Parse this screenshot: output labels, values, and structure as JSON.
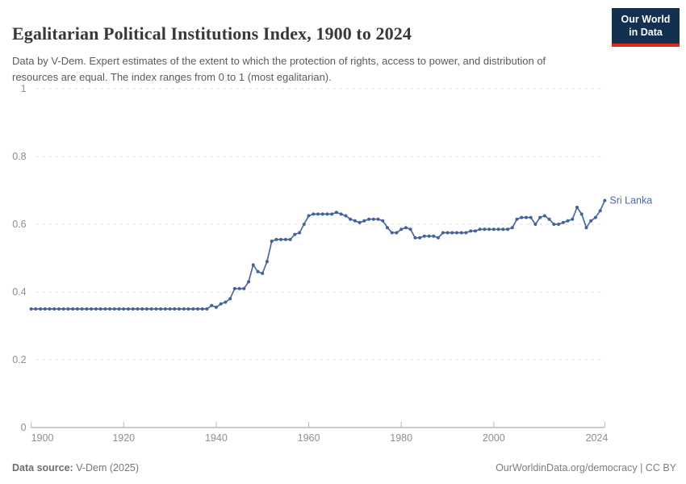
{
  "header": {
    "title": "Egalitarian Political Institutions Index, 1900 to 2024",
    "subtitle": "Data by V-Dem. Expert estimates of the extent to which the protection of rights, access to power, and distribution of resources are equal. The index ranges from 0 to 1 (most egalitarian)."
  },
  "logo": {
    "line1": "Our World",
    "line2": "in Data",
    "bg_color": "#12304f",
    "accent_color": "#dc2a16"
  },
  "chart_data": {
    "type": "line",
    "title": "Egalitarian Political Institutions Index, 1900 to 2024",
    "xlabel": "",
    "ylabel": "",
    "xlim": [
      1900,
      2024
    ],
    "ylim": [
      0,
      1
    ],
    "x_ticks": [
      1900,
      1920,
      1940,
      1960,
      1980,
      2000,
      2024
    ],
    "y_ticks": [
      0,
      0.2,
      0.4,
      0.6,
      0.8,
      1
    ],
    "grid": "horizontal-dashed",
    "legend_position": "end-of-line-label",
    "colors": {
      "line": "#4c6a9c",
      "marker": "#44619b",
      "gridline": "#d9d9d9",
      "axis": "#9a9a9a",
      "tick_label": "#8f8f8f",
      "entity_label": "#4c6a9c"
    },
    "series": [
      {
        "name": "Sri Lanka",
        "x": [
          1900,
          1901,
          1902,
          1903,
          1904,
          1905,
          1906,
          1907,
          1908,
          1909,
          1910,
          1911,
          1912,
          1913,
          1914,
          1915,
          1916,
          1917,
          1918,
          1919,
          1920,
          1921,
          1922,
          1923,
          1924,
          1925,
          1926,
          1927,
          1928,
          1929,
          1930,
          1931,
          1932,
          1933,
          1934,
          1935,
          1936,
          1937,
          1938,
          1939,
          1940,
          1941,
          1942,
          1943,
          1944,
          1945,
          1946,
          1947,
          1948,
          1949,
          1950,
          1951,
          1952,
          1953,
          1954,
          1955,
          1956,
          1957,
          1958,
          1959,
          1960,
          1961,
          1962,
          1963,
          1964,
          1965,
          1966,
          1967,
          1968,
          1969,
          1970,
          1971,
          1972,
          1973,
          1974,
          1975,
          1976,
          1977,
          1978,
          1979,
          1980,
          1981,
          1982,
          1983,
          1984,
          1985,
          1986,
          1987,
          1988,
          1989,
          1990,
          1991,
          1992,
          1993,
          1994,
          1995,
          1996,
          1997,
          1998,
          1999,
          2000,
          2001,
          2002,
          2003,
          2004,
          2005,
          2006,
          2007,
          2008,
          2009,
          2010,
          2011,
          2012,
          2013,
          2014,
          2015,
          2016,
          2017,
          2018,
          2019,
          2020,
          2021,
          2022,
          2023,
          2024
        ],
        "values": [
          0.35,
          0.35,
          0.35,
          0.35,
          0.35,
          0.35,
          0.35,
          0.35,
          0.35,
          0.35,
          0.35,
          0.35,
          0.35,
          0.35,
          0.35,
          0.35,
          0.35,
          0.35,
          0.35,
          0.35,
          0.35,
          0.35,
          0.35,
          0.35,
          0.35,
          0.35,
          0.35,
          0.35,
          0.35,
          0.35,
          0.35,
          0.35,
          0.35,
          0.35,
          0.35,
          0.35,
          0.35,
          0.35,
          0.35,
          0.36,
          0.355,
          0.365,
          0.37,
          0.38,
          0.41,
          0.41,
          0.41,
          0.43,
          0.48,
          0.46,
          0.455,
          0.49,
          0.55,
          0.555,
          0.555,
          0.555,
          0.555,
          0.57,
          0.575,
          0.6,
          0.625,
          0.63,
          0.63,
          0.63,
          0.63,
          0.63,
          0.635,
          0.63,
          0.625,
          0.615,
          0.61,
          0.605,
          0.61,
          0.615,
          0.615,
          0.615,
          0.61,
          0.59,
          0.575,
          0.575,
          0.585,
          0.59,
          0.585,
          0.56,
          0.56,
          0.565,
          0.565,
          0.565,
          0.56,
          0.575,
          0.575,
          0.575,
          0.575,
          0.575,
          0.575,
          0.58,
          0.58,
          0.585,
          0.585,
          0.585,
          0.585,
          0.585,
          0.585,
          0.585,
          0.59,
          0.615,
          0.62,
          0.62,
          0.62,
          0.6,
          0.62,
          0.625,
          0.615,
          0.6,
          0.6,
          0.605,
          0.61,
          0.615,
          0.65,
          0.63,
          0.59,
          0.61,
          0.62,
          0.64,
          0.67
        ]
      }
    ]
  },
  "footer": {
    "source_label": "Data source:",
    "source_value": " V-Dem (2025)",
    "right_text": "OurWorldinData.org/democracy | CC BY"
  }
}
